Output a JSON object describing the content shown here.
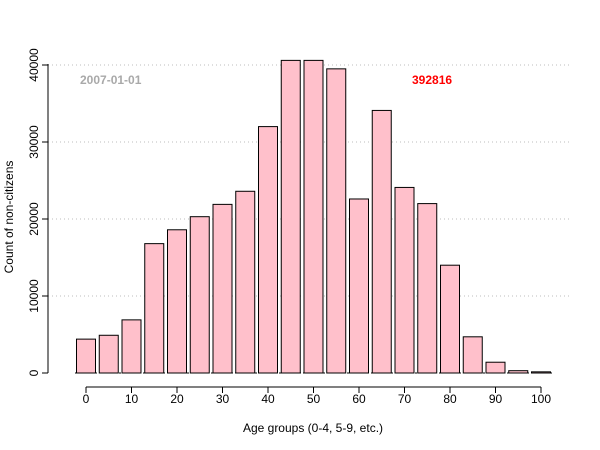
{
  "chart_data": {
    "type": "bar",
    "xlabel": "Age groups (0-4, 5-9, etc.)",
    "ylabel": "Count of non-citizens",
    "x_tick_labels": [
      "0",
      "10",
      "20",
      "30",
      "40",
      "50",
      "60",
      "70",
      "80",
      "90",
      "100"
    ],
    "y_tick_labels": [
      "0",
      "10000",
      "20000",
      "30000",
      "40000"
    ],
    "ylim": [
      0,
      41000
    ],
    "grid": "horizontal dotted",
    "bar_color": "#FFC0CB",
    "categories": [
      "0-4",
      "5-9",
      "10-14",
      "15-19",
      "20-24",
      "25-29",
      "30-34",
      "35-39",
      "40-44",
      "45-49",
      "50-54",
      "55-59",
      "60-64",
      "65-69",
      "70-74",
      "75-79",
      "80-84",
      "85-89",
      "90-94",
      "95-99",
      "100+"
    ],
    "values": [
      4400,
      4900,
      6900,
      16800,
      18600,
      20300,
      21900,
      23600,
      32000,
      40600,
      40600,
      39500,
      22600,
      34100,
      24100,
      22000,
      14000,
      4700,
      1400,
      300,
      150
    ],
    "annotations": [
      {
        "text": "2007-01-01",
        "color": "#A9A9A9"
      },
      {
        "text": "392816",
        "color": "#FF0000"
      }
    ]
  }
}
